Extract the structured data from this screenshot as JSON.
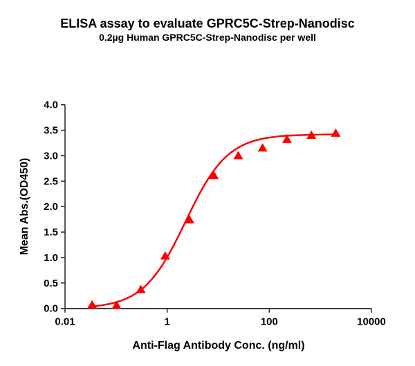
{
  "chart_data": {
    "type": "scatter",
    "title": "ELISA assay to evaluate GPRC5C-Strep-Nanodisc",
    "subtitle": "0.2µg Human GPRC5C-Strep-Nanodisc per well",
    "xlabel": "Anti-Flag Antibody Conc. (ng/ml)",
    "ylabel": "Mean Abs.(OD450)",
    "xscale": "log",
    "xlim": [
      0.01,
      10000
    ],
    "ylim": [
      0,
      4.0
    ],
    "xticks": [
      0.01,
      1,
      100,
      10000
    ],
    "xtick_labels": [
      "0.01",
      "1",
      "100",
      "10000"
    ],
    "yticks": [
      0,
      0.5,
      1,
      1.5,
      2,
      2.5,
      3,
      3.5,
      4
    ],
    "ytick_labels": [
      "0.0",
      "0.5",
      "1.0",
      "1.5",
      "2.0",
      "2.5",
      "3.0",
      "3.5",
      "4.0"
    ],
    "grid": false,
    "color": "#ff0000",
    "marker": "triangle",
    "x": [
      0.0339,
      0.102,
      0.305,
      0.914,
      2.74,
      8.23,
      24.69,
      74.07,
      222.2,
      666.7,
      2000
    ],
    "y": [
      0.07,
      0.06,
      0.37,
      1.03,
      1.74,
      2.61,
      3.0,
      3.15,
      3.32,
      3.4,
      3.44
    ],
    "fit": {
      "model": "4PL",
      "bottom": 0,
      "top": 3.42,
      "ec50": 2.3,
      "hill": 1.05
    }
  }
}
